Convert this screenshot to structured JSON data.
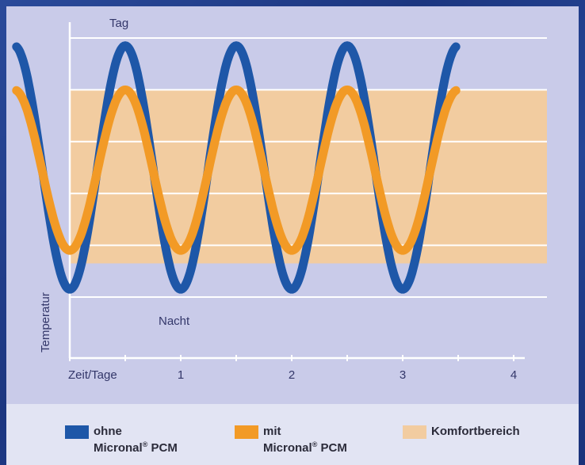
{
  "chart_data": {
    "type": "line",
    "annotations": {
      "top": "Tag",
      "bottom": "Nacht"
    },
    "xlabel": "Zeit/Tage",
    "ylabel": "Temperatur",
    "x_ticks": [
      "1",
      "2",
      "3",
      "4"
    ],
    "xlim": [
      -0.55,
      4
    ],
    "grid": true,
    "comfort_band": {
      "label": "Komfortbereich",
      "ymin": 0.13,
      "ymax": 0.8,
      "color": "#f2cca0"
    },
    "series": [
      {
        "name": "ohne Micronal® PCM",
        "color": "#1e57a8",
        "amplitude": 0.47,
        "center": 0.5,
        "period_days": 1,
        "peak_x": [
          -0.5,
          0.5,
          1.5,
          2.5
        ],
        "trough_x": [
          0,
          1,
          2,
          3
        ]
      },
      {
        "name": "mit Micronal® PCM",
        "color": "#f29a26",
        "amplitude": 0.31,
        "center": 0.49,
        "period_days": 1,
        "peak_x": [
          -0.5,
          0.5,
          1.5,
          2.5
        ],
        "trough_x": [
          0,
          1,
          2,
          3
        ]
      }
    ]
  },
  "legend": {
    "ohne_line1": "ohne",
    "ohne_line2": "Micronal",
    "ohne_suffix": " PCM",
    "mit_line1": "mit",
    "mit_line2": "Micronal",
    "mit_suffix": " PCM",
    "sup": "®",
    "komfort": "Komfortbereich"
  }
}
